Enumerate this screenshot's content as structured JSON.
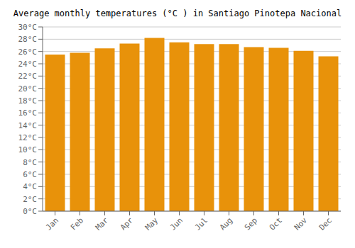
{
  "chart_data": {
    "type": "bar",
    "title": "Average monthly temperatures (°C ) in Santiago Pinotepa Nacional",
    "categories": [
      "Jan",
      "Feb",
      "Mar",
      "Apr",
      "May",
      "Jun",
      "Jul",
      "Aug",
      "Sep",
      "Oct",
      "Nov",
      "Dec"
    ],
    "values": [
      25.5,
      25.8,
      26.5,
      27.3,
      28.2,
      27.5,
      27.2,
      27.2,
      26.7,
      26.6,
      26.1,
      25.2
    ],
    "color": "#E8920A",
    "ylim": [
      0,
      30
    ],
    "yticks": [
      {
        "value": 0,
        "label": "0°C"
      },
      {
        "value": 2,
        "label": "2°C"
      },
      {
        "value": 4,
        "label": "4°C"
      },
      {
        "value": 6,
        "label": "6°C"
      },
      {
        "value": 8,
        "label": "8°C"
      },
      {
        "value": 10,
        "label": "10°C"
      },
      {
        "value": 12,
        "label": "12°C"
      },
      {
        "value": 14,
        "label": "14°C"
      },
      {
        "value": 16,
        "label": "16°C"
      },
      {
        "value": 18,
        "label": "18°C"
      },
      {
        "value": 20,
        "label": "20°C"
      },
      {
        "value": 22,
        "label": "22°C"
      },
      {
        "value": 24,
        "label": "24°C"
      },
      {
        "value": 26,
        "label": "26°C"
      },
      {
        "value": 28,
        "label": "28°C"
      },
      {
        "value": 30,
        "label": "30°C"
      }
    ],
    "grid": true
  }
}
